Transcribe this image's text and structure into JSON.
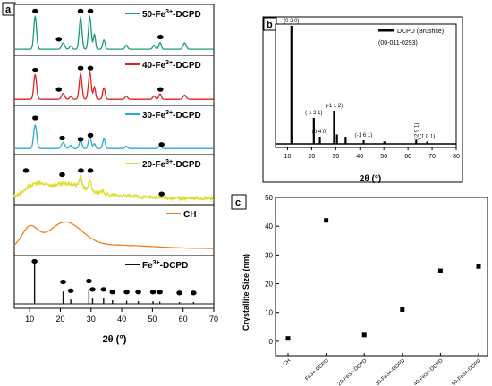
{
  "chart_data": [
    {
      "panel": "a",
      "type": "line",
      "xlabel": "2θ (°)",
      "xlim": [
        5,
        70
      ],
      "xticks": [
        10,
        20,
        30,
        40,
        50,
        60,
        70
      ],
      "ylabel": "",
      "series": [
        {
          "name": "50-Fe3+-DCPD",
          "legend": {
            "base": "50-Fe",
            "sup": "3+",
            "rest": "-DCPD"
          },
          "color": "#1a9b73",
          "peaks": [
            {
              "x": 11.8,
              "h": 0.78,
              "w": 0.9
            },
            {
              "x": 20.9,
              "h": 0.15,
              "w": 1.0
            },
            {
              "x": 23.4,
              "h": 0.08,
              "w": 0.8
            },
            {
              "x": 26.6,
              "h": 0.75,
              "w": 0.9
            },
            {
              "x": 29.6,
              "h": 0.76,
              "w": 0.9
            },
            {
              "x": 31.1,
              "h": 0.35,
              "w": 0.7
            },
            {
              "x": 34.2,
              "h": 0.22,
              "w": 0.8
            },
            {
              "x": 41.5,
              "h": 0.1,
              "w": 0.8
            },
            {
              "x": 50.5,
              "h": 0.1,
              "w": 0.8
            },
            {
              "x": 52.5,
              "h": 0.16,
              "w": 0.8
            },
            {
              "x": 60.5,
              "h": 0.15,
              "w": 1.0
            }
          ],
          "markers": [
            {
              "x": 11.8,
              "y": 0.95
            },
            {
              "x": 19.5,
              "y": 0.28
            },
            {
              "x": 26.6,
              "y": 0.95
            },
            {
              "x": 29.8,
              "y": 0.95
            },
            {
              "x": 52.6,
              "y": 0.33
            }
          ]
        },
        {
          "name": "40-Fe3+-DCPD",
          "legend": {
            "base": "40-Fe",
            "sup": "3+",
            "rest": "-DCPD"
          },
          "color": "#e02020",
          "peaks": [
            {
              "x": 11.8,
              "h": 0.6,
              "w": 0.9
            },
            {
              "x": 20.9,
              "h": 0.14,
              "w": 1.0
            },
            {
              "x": 23.4,
              "h": 0.07,
              "w": 0.8
            },
            {
              "x": 26.6,
              "h": 0.62,
              "w": 0.9
            },
            {
              "x": 29.6,
              "h": 0.66,
              "w": 0.9
            },
            {
              "x": 31.1,
              "h": 0.3,
              "w": 0.7
            },
            {
              "x": 34.2,
              "h": 0.28,
              "w": 0.8
            },
            {
              "x": 41.5,
              "h": 0.08,
              "w": 0.8
            },
            {
              "x": 50.5,
              "h": 0.08,
              "w": 0.8
            },
            {
              "x": 52.5,
              "h": 0.13,
              "w": 0.8
            },
            {
              "x": 60.5,
              "h": 0.1,
              "w": 1.0
            }
          ],
          "markers": [
            {
              "x": 11.8,
              "y": 0.75
            },
            {
              "x": 19.5,
              "y": 0.28
            },
            {
              "x": 26.6,
              "y": 0.8
            },
            {
              "x": 29.8,
              "y": 0.8
            },
            {
              "x": 52.6,
              "y": 0.28
            }
          ]
        },
        {
          "name": "30-Fe3+-DCPD",
          "legend": {
            "base": "30-Fe",
            "sup": "3+",
            "rest": "-DCPD"
          },
          "color": "#2aa8d8",
          "peaks": [
            {
              "x": 11.8,
              "h": 0.58,
              "w": 1.0
            },
            {
              "x": 20.9,
              "h": 0.15,
              "w": 1.1
            },
            {
              "x": 23.4,
              "h": 0.08,
              "w": 0.9
            },
            {
              "x": 26.6,
              "h": 0.2,
              "w": 0.9
            },
            {
              "x": 29.6,
              "h": 0.3,
              "w": 0.9
            },
            {
              "x": 31.1,
              "h": 0.12,
              "w": 0.7
            },
            {
              "x": 34.2,
              "h": 0.24,
              "w": 0.8
            },
            {
              "x": 41.5,
              "h": 0.06,
              "w": 0.8
            },
            {
              "x": 52.5,
              "h": 0.08,
              "w": 0.8
            }
          ],
          "markers": [
            {
              "x": 11.8,
              "y": 0.8
            },
            {
              "x": 20.6,
              "y": 0.3
            },
            {
              "x": 26.6,
              "y": 0.27
            },
            {
              "x": 29.8,
              "y": 0.37
            },
            {
              "x": 53.0,
              "y": 0.14
            }
          ]
        },
        {
          "name": "20-Fe3+-DCPD",
          "legend": {
            "base": "20-Fe",
            "sup": "3+",
            "rest": "-DCPD"
          },
          "color": "#dede28",
          "noise": true,
          "broad": [
            {
              "x": 11.5,
              "h": 0.28,
              "w": 3.5
            },
            {
              "x": 22.0,
              "h": 0.33,
              "w": 6.0
            },
            {
              "x": 36.0,
              "h": 0.07,
              "w": 10.0
            }
          ],
          "peaks": [
            {
              "x": 26.6,
              "h": 0.22,
              "w": 0.9
            },
            {
              "x": 29.6,
              "h": 0.22,
              "w": 0.9
            },
            {
              "x": 34.0,
              "h": 0.08,
              "w": 0.8
            }
          ],
          "markers": [
            {
              "x": 8.8,
              "y": 0.72
            },
            {
              "x": 20.6,
              "y": 0.62
            },
            {
              "x": 26.7,
              "y": 0.72
            },
            {
              "x": 29.8,
              "y": 0.72
            },
            {
              "x": 53.0,
              "y": 0.15
            }
          ]
        },
        {
          "name": "CH",
          "legend": {
            "base": "CH",
            "sup": "",
            "rest": ""
          },
          "color": "#f28020",
          "broad": [
            {
              "x": 10.0,
              "h": 0.47,
              "w": 2.6
            },
            {
              "x": 21.5,
              "h": 0.6,
              "w": 5.5
            },
            {
              "x": 38.0,
              "h": 0.08,
              "w": 12.0
            }
          ],
          "peaks": [],
          "markers": []
        },
        {
          "name": "Fe3+-DCPD",
          "legend": {
            "base": "Fe",
            "sup": "3+",
            "rest": "-DCPD"
          },
          "color": "#111111",
          "sticks": [
            {
              "x": 11.6,
              "h": 0.93
            },
            {
              "x": 20.9,
              "h": 0.28
            },
            {
              "x": 23.4,
              "h": 0.1
            },
            {
              "x": 29.3,
              "h": 0.33
            },
            {
              "x": 30.5,
              "h": 0.12
            },
            {
              "x": 34.1,
              "h": 0.14
            },
            {
              "x": 37.0,
              "h": 0.08
            },
            {
              "x": 41.6,
              "h": 0.07
            },
            {
              "x": 45.4,
              "h": 0.06
            },
            {
              "x": 50.2,
              "h": 0.06
            },
            {
              "x": 52.4,
              "h": 0.05
            },
            {
              "x": 58.8,
              "h": 0.04
            },
            {
              "x": 63.4,
              "h": 0.04
            }
          ],
          "markers": [
            {
              "x": 11.6,
              "y": 0.97
            },
            {
              "x": 20.9,
              "y": 0.5
            },
            {
              "x": 23.4,
              "y": 0.3
            },
            {
              "x": 29.3,
              "y": 0.52
            },
            {
              "x": 30.5,
              "y": 0.33
            },
            {
              "x": 34.1,
              "y": 0.33
            },
            {
              "x": 37.0,
              "y": 0.27
            },
            {
              "x": 41.6,
              "y": 0.27
            },
            {
              "x": 45.4,
              "y": 0.27
            },
            {
              "x": 50.2,
              "y": 0.27
            },
            {
              "x": 52.4,
              "y": 0.27
            },
            {
              "x": 58.8,
              "y": 0.25
            },
            {
              "x": 63.4,
              "y": 0.25
            }
          ]
        }
      ]
    },
    {
      "panel": "b",
      "type": "bar",
      "xlabel": "2θ (°)",
      "xlim": [
        5,
        80
      ],
      "xticks": [
        10,
        20,
        30,
        40,
        50,
        60,
        70,
        80
      ],
      "legend_name": "DCPD (Brushite)",
      "reference": "(00-011-0293)",
      "color": "#000000",
      "peaks": [
        {
          "x": 11.6,
          "h": 1.0,
          "label": "(0 2 0)"
        },
        {
          "x": 20.9,
          "h": 0.22,
          "label": "(-1 2 1)"
        },
        {
          "x": 23.4,
          "h": 0.06,
          "label": "(0 4 0)"
        },
        {
          "x": 29.3,
          "h": 0.28,
          "label": "(-1 1 2)"
        },
        {
          "x": 30.5,
          "h": 0.08,
          "label": ""
        },
        {
          "x": 34.1,
          "h": 0.06,
          "label": ""
        },
        {
          "x": 41.6,
          "h": 0.03,
          "label": "(-1 6 1)"
        },
        {
          "x": 50.2,
          "h": 0.02,
          "label": ""
        },
        {
          "x": 63.4,
          "h": 0.03,
          "label": "(-2 9 1)"
        },
        {
          "x": 68.0,
          "h": 0.02,
          "label": "(1 0 1)"
        }
      ]
    },
    {
      "panel": "c",
      "type": "scatter",
      "xlabel": "",
      "ylabel": "Crystallite Size (nm)",
      "ylim": [
        -5,
        50
      ],
      "yticks": [
        0,
        10,
        20,
        30,
        40,
        50
      ],
      "categories": [
        "CH",
        "Fe3+-DCPD",
        "20-Fe3+-DCPD",
        "30-Fe3+-DCPD",
        "40-Fe3+-DCPD",
        "50-Fe3+-DCPD"
      ],
      "values": [
        1,
        42,
        2.2,
        11,
        24.5,
        26
      ],
      "color": "#000000"
    }
  ]
}
